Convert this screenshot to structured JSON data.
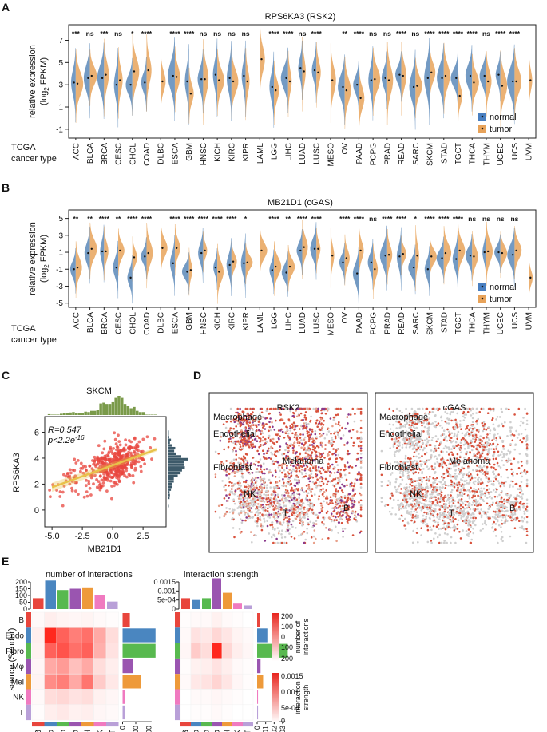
{
  "colors": {
    "normal": "#5b88b8",
    "tumor": "#e8a35a",
    "scatter": "#e8473f",
    "fit": "#e8c24a",
    "hist_top": "#7a9a4a",
    "hist_right": "#3d5a6a",
    "tsne_grey": "#cfcfcf",
    "tsne_red": "#d8523d",
    "tsne_purple": "#8a3a8c",
    "celltypes": {
      "B": "#e8453c",
      "Endo": "#4a86c0",
      "Fibro": "#58b94f",
      "Mφ": "#9a55b0",
      "Mel": "#ee9a3a",
      "NK": "#f07ac0",
      "T": "#b9a0d8"
    }
  },
  "panels": {
    "a": "A",
    "b": "B",
    "c": "C",
    "d": "D",
    "e": "E"
  },
  "chart_data": [
    {
      "id": "A",
      "type": "split-violin",
      "title": "RPS6KA3 (RSK2)",
      "ylabel_line1": "relative expression",
      "ylabel_line2": "(log",
      "ylabel_sub": "2",
      "ylabel_end": " FPKM)",
      "xlabel_line1": "TCGA",
      "xlabel_line2": "cancer type",
      "yticks": [
        "7",
        "5",
        "3",
        "1",
        "-1"
      ],
      "ytick_values": [
        7,
        5,
        3,
        1,
        -1
      ],
      "ylim": [
        -1.8,
        8.4
      ],
      "legend": [
        "normal",
        "tumor"
      ],
      "categories": [
        "ACC",
        "BLCA",
        "BRCA",
        "CESC",
        "CHOL",
        "COAD",
        "DLBC",
        "ESCA",
        "GBM",
        "HNSC",
        "KICH",
        "KIRC",
        "KIPR",
        "LAML",
        "LGG",
        "LIHC",
        "LUAD",
        "LUSC",
        "MESO",
        "OV",
        "PAAD",
        "PCPG",
        "PRAD",
        "READ",
        "SARC",
        "SKCM",
        "STAD",
        "TGCT",
        "THCA",
        "THYM",
        "UCEC",
        "UCS",
        "UVM"
      ],
      "significance": [
        "***",
        "ns",
        "***",
        "ns",
        "*",
        "****",
        "",
        "****",
        "****",
        "ns",
        "ns",
        "ns",
        "ns",
        "",
        "****",
        "****",
        "ns",
        "****",
        "",
        "**",
        "****",
        "ns",
        "ns",
        "****",
        "ns",
        "****",
        "****",
        "****",
        "****",
        "ns",
        "****",
        "****",
        ""
      ],
      "normal_median": [
        3.2,
        3.6,
        3.6,
        3.0,
        3.0,
        3.2,
        null,
        3.8,
        3.3,
        3.5,
        3.9,
        3.6,
        3.8,
        null,
        2.8,
        3.6,
        4.5,
        4.3,
        null,
        2.8,
        3.0,
        3.4,
        3.6,
        3.9,
        2.8,
        3.6,
        3.6,
        3.6,
        3.8,
        3.8,
        3.9,
        3.3,
        null
      ],
      "tumor_median": [
        3.1,
        3.8,
        3.9,
        3.4,
        4.2,
        4.3,
        3.3,
        3.7,
        2.2,
        3.5,
        3.4,
        3.3,
        3.3,
        5.3,
        2.5,
        3.3,
        4.2,
        4.1,
        3.4,
        2.5,
        1.8,
        3.5,
        3.4,
        3.8,
        2.9,
        4.1,
        3.8,
        2.0,
        3.2,
        3.3,
        2.9,
        3.3,
        3.4
      ]
    },
    {
      "id": "B",
      "type": "split-violin",
      "title": "MB21D1 (cGAS)",
      "ylabel_line1": "relative expression",
      "ylabel_line2": "(log",
      "ylabel_sub": "2",
      "ylabel_end": " FPKM)",
      "xlabel_line1": "TCGA",
      "xlabel_line2": "cancer type",
      "yticks": [
        "5",
        "3",
        "1",
        "-1",
        "-3",
        "-5"
      ],
      "ytick_values": [
        5,
        3,
        1,
        -1,
        -3,
        -5
      ],
      "ylim": [
        -5.5,
        6.0
      ],
      "legend": [
        "normal",
        "tumor"
      ],
      "categories": [
        "ACC",
        "BLCA",
        "BRCA",
        "CESC",
        "CHOL",
        "COAD",
        "DLBC",
        "ESCA",
        "GBM",
        "HNSC",
        "KICH",
        "KIRC",
        "KIPR",
        "LAML",
        "LGG",
        "LIHC",
        "LUAD",
        "LUSC",
        "MESO",
        "OV",
        "PAAD",
        "PCPG",
        "PRAD",
        "READ",
        "SARC",
        "SKCM",
        "STAD",
        "TGCT",
        "THCA",
        "THYM",
        "UCEC",
        "UCS",
        "UVM"
      ],
      "significance": [
        "**",
        "**",
        "****",
        "**",
        "****",
        "****",
        "",
        "****",
        "****",
        "****",
        "****",
        "****",
        "*",
        "",
        "****",
        "**",
        "****",
        "****",
        "",
        "****",
        "****",
        "ns",
        "****",
        "****",
        "*",
        "****",
        "****",
        "****",
        "ns",
        "ns",
        "ns",
        "ns",
        ""
      ],
      "normal_median": [
        -1.0,
        0.9,
        1.1,
        -0.8,
        -2.0,
        0.5,
        null,
        -0.3,
        -1.3,
        0.9,
        -0.8,
        -0.5,
        -0.3,
        null,
        -1.1,
        -1.4,
        1.2,
        1.4,
        null,
        -0.2,
        -1.5,
        -0.2,
        0.6,
        0.5,
        -0.8,
        -1.0,
        0.3,
        0.2,
        0.6,
        1.0,
        1.0,
        0.7,
        null
      ],
      "tumor_median": [
        -0.8,
        1.4,
        1.1,
        1.2,
        0.4,
        0.9,
        1.5,
        1.5,
        -1.1,
        1.2,
        -1.3,
        -0.1,
        -0.2,
        1.2,
        -0.7,
        -0.7,
        1.6,
        1.4,
        0.6,
        0.3,
        1.2,
        -1.0,
        0.7,
        0.8,
        0.6,
        0.5,
        0.9,
        1.2,
        0.5,
        1.1,
        0.9,
        1.2,
        -2.0
      ]
    },
    {
      "id": "C",
      "type": "scatter",
      "title": "SKCM",
      "xlabel": "MB21D1",
      "ylabel": "RPS6KA3",
      "xlim": [
        -5.6,
        4.4
      ],
      "ylim": [
        -1.3,
        7.2
      ],
      "xticks": [
        "-5.0",
        "-2.5",
        "0.0",
        "2.5"
      ],
      "xtick_values": [
        -5,
        -2.5,
        0,
        2.5
      ],
      "yticks": [
        "6",
        "4",
        "2",
        "0"
      ],
      "ytick_values": [
        6,
        4,
        2,
        0
      ],
      "r_text": "R=0.547",
      "p_text": "p<2.2e",
      "p_exp": "-16",
      "fit": {
        "slope": 0.34,
        "intercept": 3.45
      },
      "n_points": 470
    },
    {
      "id": "D",
      "type": "tsne",
      "plots": [
        {
          "title": "RSK2",
          "labels": [
            "Macrophage",
            "Endothelial",
            "Fibroblast",
            "Melanoma",
            "NK",
            "T",
            "B"
          ]
        },
        {
          "title": "cGAS",
          "labels": [
            "Macrophage",
            "Endothelial",
            "Fibroblast",
            "Melanoma",
            "NK",
            "T",
            "B"
          ]
        }
      ]
    },
    {
      "id": "E",
      "type": "heatmap",
      "ylabel": "source (Sender)",
      "cell_types": [
        "B",
        "Endo",
        "Fibro",
        "Mφ",
        "Mel",
        "NK",
        "T"
      ],
      "left": {
        "title": "number of interactions",
        "top_ticks": [
          "200",
          "150",
          "100",
          "50",
          "0"
        ],
        "top_tick_values": [
          200,
          150,
          100,
          50,
          0
        ],
        "top_bars": [
          80,
          210,
          140,
          150,
          160,
          105,
          55
        ],
        "right_bars": [
          55,
          290,
          380,
          80,
          140,
          20,
          15
        ],
        "right_ticks": [
          "0",
          "100",
          "200"
        ],
        "right_tick_values": [
          0,
          100,
          200
        ],
        "matrix": [
          [
            2,
            6,
            4,
            3,
            4,
            2,
            1
          ],
          [
            6,
            75,
            55,
            45,
            50,
            30,
            12
          ],
          [
            5,
            55,
            60,
            50,
            55,
            28,
            10
          ],
          [
            3,
            30,
            35,
            22,
            30,
            12,
            6
          ],
          [
            4,
            40,
            45,
            30,
            48,
            18,
            8
          ],
          [
            2,
            12,
            14,
            10,
            12,
            5,
            3
          ],
          [
            1,
            6,
            8,
            5,
            6,
            3,
            2
          ]
        ]
      },
      "right": {
        "title": "interaction strength",
        "top_ticks": [
          "0.0015",
          "0.001",
          "5e-04",
          "0"
        ],
        "top_tick_values": [
          0.0015,
          0.001,
          0.0005,
          0
        ],
        "top_bars": [
          0.0006,
          0.0005,
          0.0006,
          0.0017,
          0.0009,
          0.0003,
          0.0002
        ],
        "right_bars": [
          0.0003,
          0.0012,
          0.0036,
          0.0004,
          0.0007,
          0.0001,
          0.0001
        ],
        "right_ticks": [
          "0",
          "0.001",
          "0.002",
          "0.003"
        ],
        "right_tick_values": [
          0,
          0.001,
          0.002,
          0.003
        ],
        "matrix": [
          [
            1,
            2,
            2,
            5,
            2,
            1,
            0
          ],
          [
            2,
            10,
            8,
            14,
            9,
            4,
            2
          ],
          [
            3,
            18,
            12,
            75,
            14,
            6,
            3
          ],
          [
            1,
            5,
            6,
            10,
            6,
            2,
            1
          ],
          [
            2,
            8,
            10,
            15,
            9,
            3,
            1
          ],
          [
            0,
            2,
            2,
            3,
            2,
            1,
            0
          ],
          [
            0,
            1,
            1,
            2,
            1,
            0,
            0
          ]
        ]
      },
      "legend_count": {
        "title_line1": "number of",
        "title_line2": "interactions",
        "ticks": [
          "200",
          "100",
          "0",
          "100",
          "200"
        ]
      },
      "legend_strength": {
        "title_line1": "interaction",
        "title_line2": "strength",
        "ticks": [
          "0.0015",
          "0.001",
          "5e-04",
          "0"
        ]
      }
    }
  ]
}
